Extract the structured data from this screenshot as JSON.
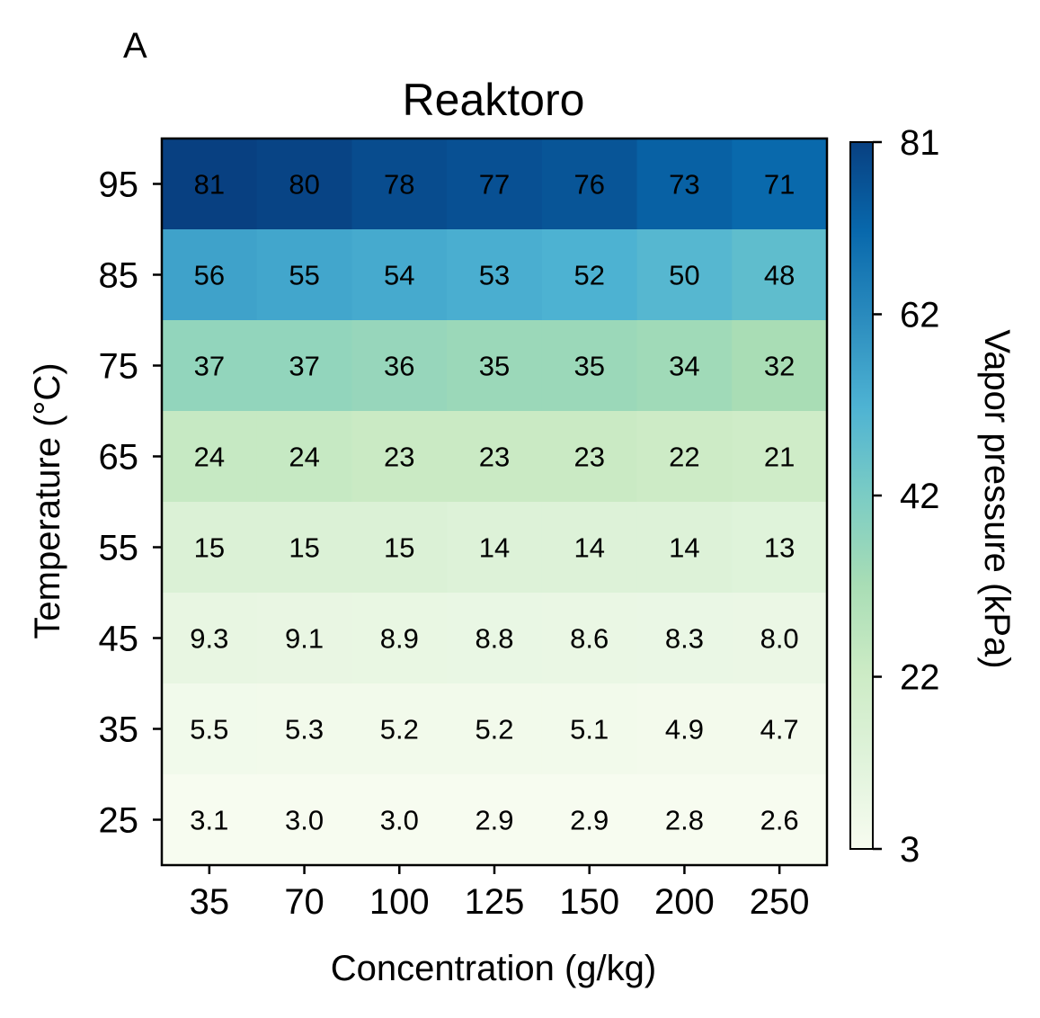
{
  "chart_data": {
    "type": "heatmap",
    "panel_label": "A",
    "title": "Reaktoro",
    "xlabel": "Concentration (g/kg)",
    "ylabel": "Temperature (°C)",
    "x_categories": [
      "35",
      "70",
      "100",
      "125",
      "150",
      "200",
      "250"
    ],
    "y_categories": [
      "95",
      "85",
      "75",
      "65",
      "55",
      "45",
      "35",
      "25"
    ],
    "values": [
      [
        81,
        80,
        78,
        77,
        76,
        73,
        71
      ],
      [
        56,
        55,
        54,
        53,
        52,
        50,
        48
      ],
      [
        37,
        37,
        36,
        35,
        35,
        34,
        32
      ],
      [
        24,
        24,
        23,
        23,
        23,
        22,
        21
      ],
      [
        15,
        15,
        15,
        14,
        14,
        14,
        13
      ],
      [
        9.3,
        9.1,
        8.9,
        8.8,
        8.6,
        8.3,
        8.0
      ],
      [
        5.5,
        5.3,
        5.2,
        5.2,
        5.1,
        4.9,
        4.7
      ],
      [
        3.1,
        3.0,
        3.0,
        2.9,
        2.9,
        2.8,
        2.6
      ]
    ],
    "cell_labels": [
      [
        "81",
        "80",
        "78",
        "77",
        "76",
        "73",
        "71"
      ],
      [
        "56",
        "55",
        "54",
        "53",
        "52",
        "50",
        "48"
      ],
      [
        "37",
        "37",
        "36",
        "35",
        "35",
        "34",
        "32"
      ],
      [
        "24",
        "24",
        "23",
        "23",
        "23",
        "22",
        "21"
      ],
      [
        "15",
        "15",
        "15",
        "14",
        "14",
        "14",
        "13"
      ],
      [
        "9.3",
        "9.1",
        "8.9",
        "8.8",
        "8.6",
        "8.3",
        "8.0"
      ],
      [
        "5.5",
        "5.3",
        "5.2",
        "5.2",
        "5.1",
        "4.9",
        "4.7"
      ],
      [
        "3.1",
        "3.0",
        "3.0",
        "2.9",
        "2.9",
        "2.8",
        "2.6"
      ]
    ],
    "colorbar": {
      "label": "Vapor pressure (kPa)",
      "range": [
        3,
        81
      ],
      "ticks": [
        "3",
        "22",
        "42",
        "62",
        "81"
      ],
      "colormap": "GnBu",
      "colors": [
        "#f7fcf0",
        "#e0f3db",
        "#ccebc5",
        "#a8ddb5",
        "#7bccc4",
        "#4eb3d3",
        "#2b8cbe",
        "#0868ac",
        "#084081"
      ]
    },
    "grid": false
  }
}
